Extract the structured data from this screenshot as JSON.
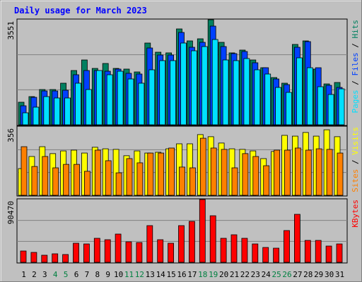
{
  "chart_data": [
    {
      "type": "bar",
      "title": "Daily usage for March 2023",
      "ylim": [
        0,
        3551
      ],
      "yticks": [
        3551
      ],
      "grid_divisions": 3,
      "legend_separator": " / ",
      "series": [
        {
          "name": "Hits",
          "color": "#008060",
          "values": [
            763,
            953,
            1192,
            1192,
            1406,
            1835,
            2192,
            1906,
            2073,
            1906,
            1883,
            1787,
            2764,
            2454,
            2431,
            3241,
            2836,
            2907,
            3551,
            2788,
            2431,
            2526,
            2192,
            1930,
            1597,
            1406,
            2717,
            2836,
            1883,
            1382,
            1430
          ]
        },
        {
          "name": "Files",
          "color": "#0040ff",
          "values": [
            643,
            929,
            1144,
            1144,
            1168,
            1692,
            1835,
            1835,
            1811,
            1883,
            1740,
            1716,
            2597,
            2359,
            2359,
            3122,
            2621,
            2788,
            3336,
            2645,
            2407,
            2478,
            2097,
            1930,
            1549,
            1358,
            2621,
            2812,
            1930,
            1334,
            1263
          ]
        },
        {
          "name": "Pages",
          "color": "#00e0ff",
          "values": [
            405,
            596,
            953,
            906,
            906,
            1406,
            1192,
            1835,
            1692,
            1811,
            1549,
            1406,
            1859,
            2169,
            2169,
            2764,
            2502,
            2645,
            2883,
            2192,
            2169,
            2240,
            1859,
            1716,
            1263,
            1096,
            2264,
            1930,
            1287,
            1025,
            1215
          ]
        }
      ]
    },
    {
      "type": "bar",
      "ylim": [
        0,
        356
      ],
      "yticks": [
        356
      ],
      "grid_divisions": 3,
      "legend_separator": " / ",
      "series": [
        {
          "name": "Visits",
          "color": "#ffff00",
          "values": [
            139,
            202,
            253,
            217,
            231,
            235,
            220,
            250,
            242,
            239,
            206,
            231,
            220,
            224,
            242,
            268,
            268,
            316,
            305,
            272,
            242,
            239,
            231,
            191,
            228,
            312,
            308,
            327,
            308,
            341,
            305
          ]
        },
        {
          "name": "Sites",
          "color": "#ff8000",
          "values": [
            253,
            150,
            202,
            143,
            161,
            161,
            125,
            235,
            180,
            117,
            191,
            169,
            220,
            220,
            246,
            147,
            143,
            297,
            246,
            239,
            143,
            217,
            202,
            154,
            235,
            235,
            246,
            235,
            242,
            239,
            220
          ]
        }
      ]
    },
    {
      "type": "bar",
      "ylim": [
        0,
        90470
      ],
      "yticks": [
        90470
      ],
      "grid_divisions": 3,
      "categories": [
        "1",
        "2",
        "3",
        "4",
        "5",
        "6",
        "7",
        "8",
        "9",
        "10",
        "11",
        "12",
        "13",
        "14",
        "15",
        "16",
        "17",
        "18",
        "19",
        "20",
        "21",
        "22",
        "23",
        "24",
        "25",
        "26",
        "27",
        "28",
        "29",
        "30",
        "31"
      ],
      "category_colors": [
        "#000000",
        "#000000",
        "#000000",
        "#008040",
        "#008040",
        "#000000",
        "#000000",
        "#000000",
        "#000000",
        "#000000",
        "#008040",
        "#008040",
        "#000000",
        "#000000",
        "#000000",
        "#000000",
        "#000000",
        "#008040",
        "#008040",
        "#000000",
        "#000000",
        "#000000",
        "#000000",
        "#000000",
        "#008040",
        "#008040",
        "#000000",
        "#000000",
        "#000000",
        "#000000",
        "#000000"
      ],
      "series": [
        {
          "name": "KBytes",
          "color": "#ff0000",
          "values": [
            16264,
            14231,
            10165,
            12198,
            11182,
            27446,
            26429,
            34561,
            32528,
            40660,
            29479,
            28462,
            52858,
            32528,
            27446,
            52858,
            58957,
            90470,
            67089,
            34561,
            39644,
            34561,
            26429,
            21347,
            20330,
            45743,
            69122,
            31512,
            31512,
            23380,
            26429
          ]
        }
      ]
    }
  ]
}
